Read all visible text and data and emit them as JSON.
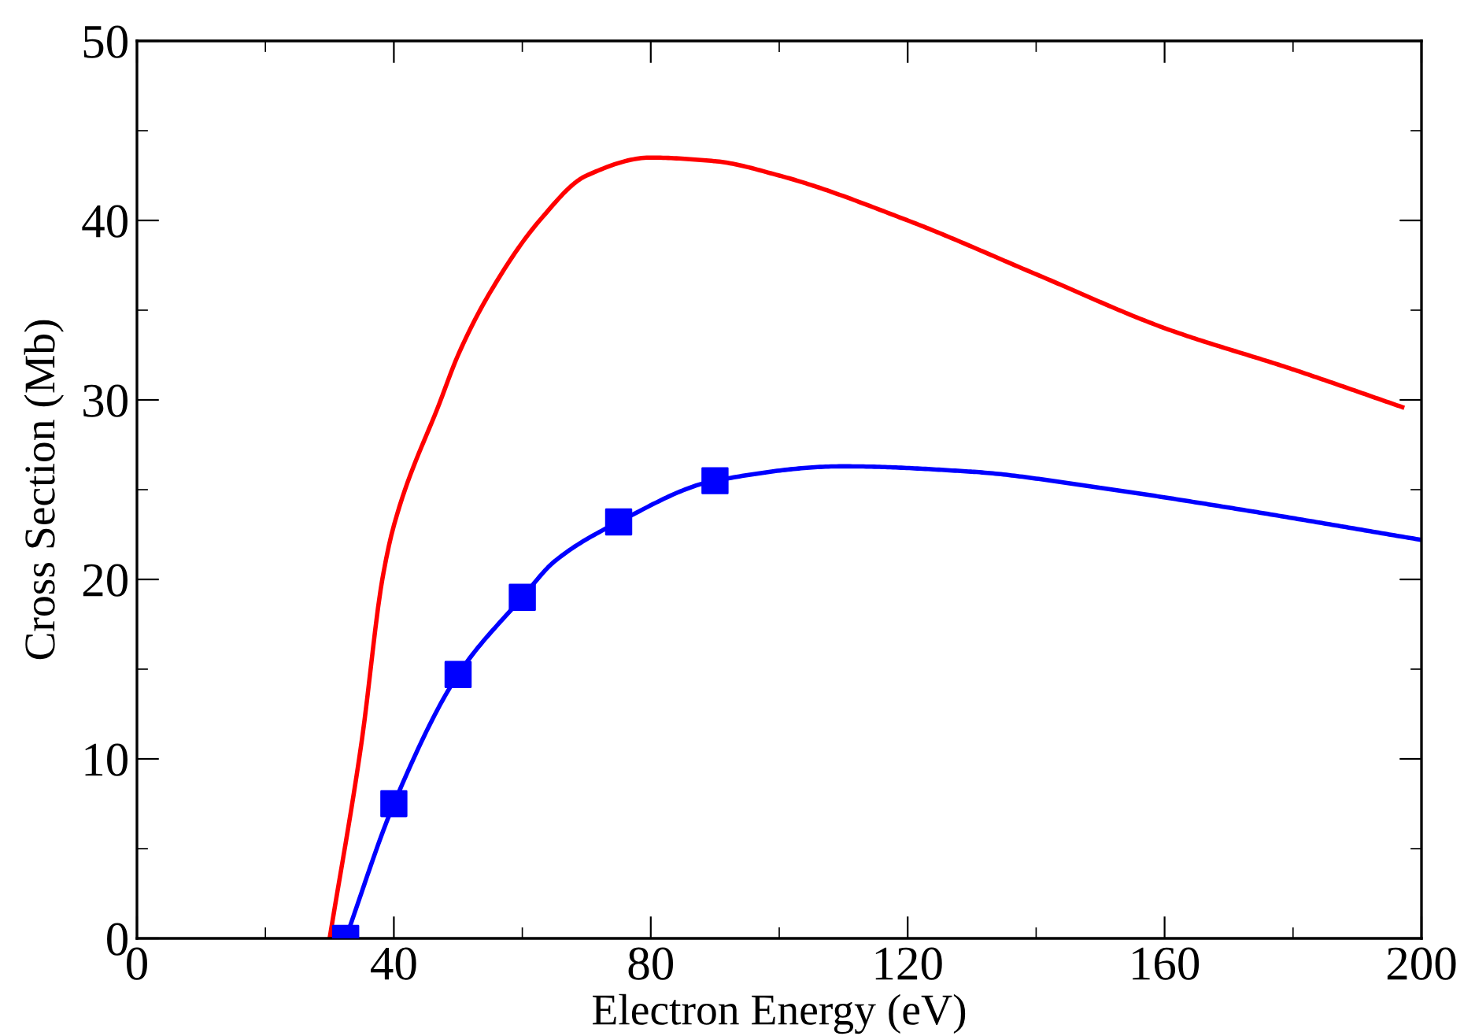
{
  "chart_data": {
    "type": "line",
    "xlabel": "Electron Energy (eV)",
    "ylabel": "Cross Section (Mb)",
    "xlim": [
      0,
      200
    ],
    "ylim": [
      0,
      50
    ],
    "xticks": [
      0,
      {
        "value": 20,
        "label": null
      },
      40,
      {
        "value": 60,
        "label": null
      },
      80,
      {
        "value": 100,
        "label": null
      },
      120,
      {
        "value": 140,
        "label": null
      },
      160,
      {
        "value": 180,
        "label": null
      },
      200
    ],
    "yticks": [
      0,
      {
        "value": 5,
        "label": null
      },
      10,
      {
        "value": 15,
        "label": null
      },
      20,
      {
        "value": 25,
        "label": null
      },
      30,
      {
        "value": 35,
        "label": null
      },
      40,
      {
        "value": 45,
        "label": null
      },
      50
    ],
    "grid": false,
    "series": [
      {
        "color": "#ff0000",
        "marker": "none",
        "line_style": "solid",
        "x": [
          30,
          35,
          38.2,
          40,
          47.3,
          50,
          55,
          62.7,
          70,
          80,
          90,
          100,
          120,
          140,
          160,
          180,
          197
        ],
        "values": [
          0,
          11,
          20,
          23,
          30,
          32.5,
          36,
          40,
          42.5,
          43.5,
          43.3,
          42.5,
          40,
          37,
          34,
          31.7,
          29.6
        ]
      },
      {
        "color": "#0000ff",
        "marker": "none",
        "line_style": "solid",
        "x": [
          32.5,
          40,
          50,
          60,
          65,
          75,
          90,
          110,
          130,
          150,
          170,
          200
        ],
        "values": [
          0,
          7.5,
          14.7,
          19,
          21,
          23.2,
          25.5,
          26.3,
          26,
          25.1,
          24,
          22.2
        ]
      },
      {
        "type": "scatter",
        "color": "#0000ff",
        "marker": "square",
        "x": [
          32.5,
          40,
          50,
          60,
          75,
          90
        ],
        "values": [
          0,
          7.5,
          14.7,
          19,
          23.2,
          25.5
        ]
      }
    ]
  }
}
